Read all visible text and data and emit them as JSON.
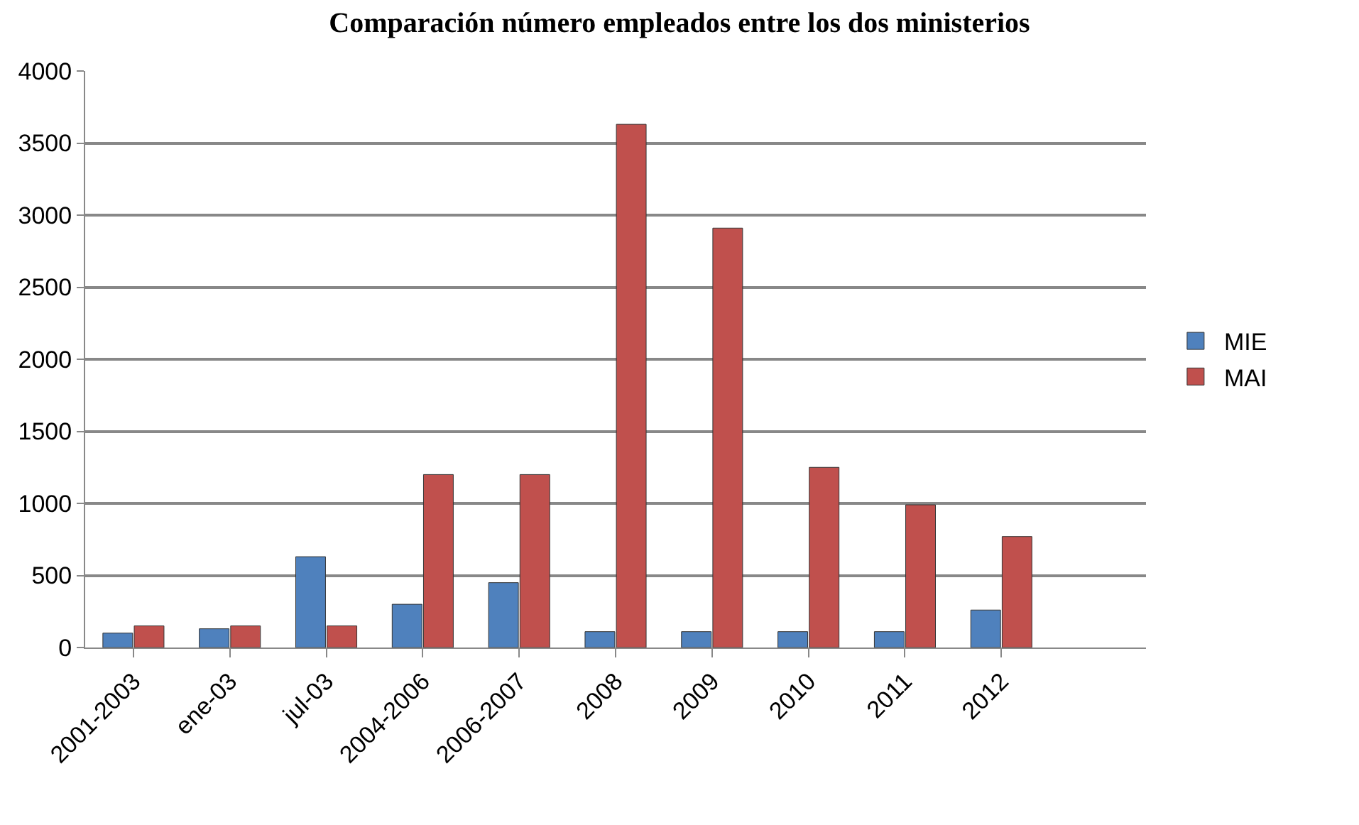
{
  "chart_data": {
    "type": "bar",
    "title": "Comparación número empleados entre los dos ministerios",
    "categories": [
      "2001-2003",
      "ene-03",
      "jul-03",
      "2004-2006",
      "2006-2007",
      "2008",
      "2009",
      "2010",
      "2011",
      "2012"
    ],
    "series": [
      {
        "name": "MIE",
        "color": "#4f81bd",
        "values": [
          100,
          130,
          630,
          300,
          450,
          110,
          110,
          110,
          110,
          260
        ]
      },
      {
        "name": "MAI",
        "color": "#c0504d",
        "values": [
          150,
          150,
          150,
          1200,
          1200,
          3630,
          2910,
          1250,
          990,
          770
        ]
      }
    ],
    "ylim": [
      0,
      4000
    ],
    "yticks": [
      0,
      500,
      1000,
      1500,
      2000,
      2500,
      3000,
      3500,
      4000
    ],
    "grid": "y",
    "legend": "right"
  }
}
